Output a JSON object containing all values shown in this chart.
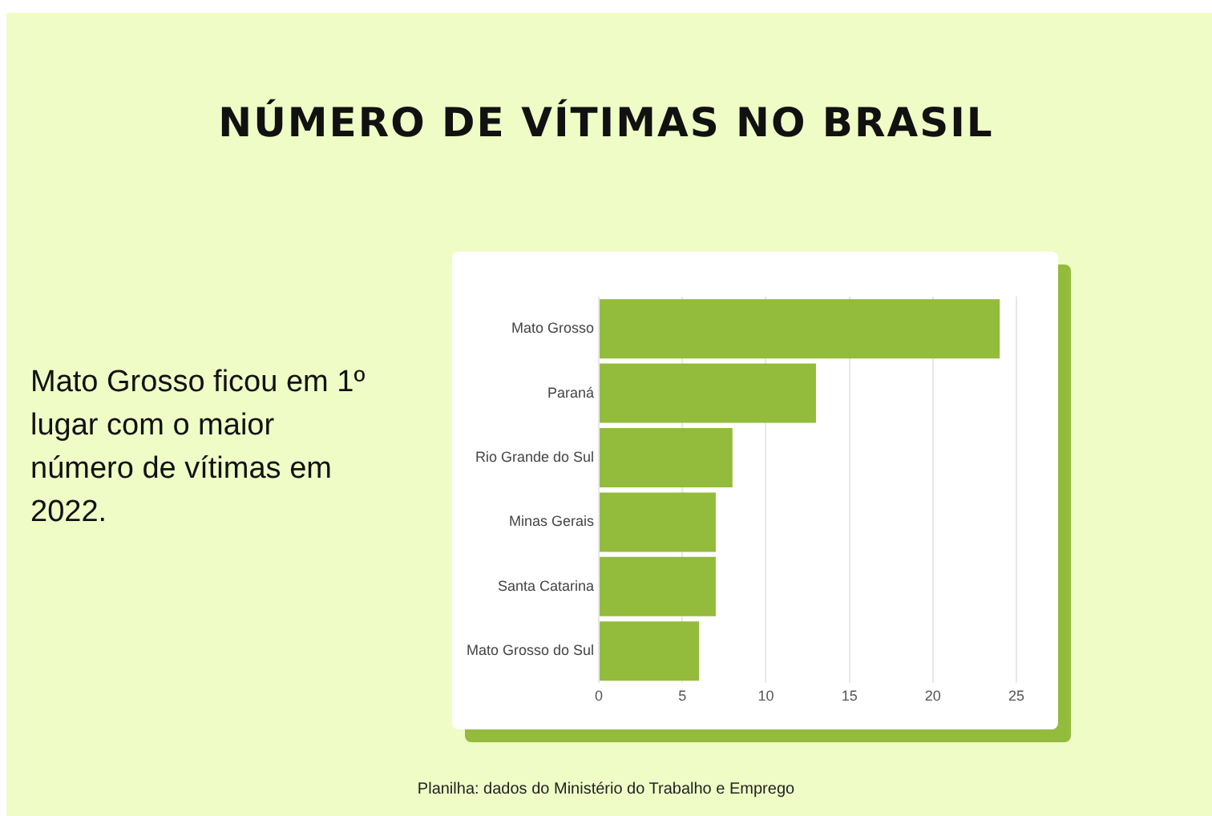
{
  "chart_data": {
    "type": "bar",
    "orientation": "horizontal",
    "title": "NÚMERO DE VÍTIMAS NO BRASIL",
    "categories": [
      "Mato Grosso",
      "Paraná",
      "Rio Grande do Sul",
      "Minas Gerais",
      "Santa Catarina",
      "Mato Grosso do Sul"
    ],
    "values": [
      24,
      13,
      8,
      7,
      7,
      6
    ],
    "color": "#93bb3c",
    "xlim": [
      0,
      25
    ],
    "xticks": [
      0,
      5,
      10,
      15,
      20,
      25
    ],
    "grid": "x",
    "annotations": [
      "Mato Grosso ficou em 1º lugar com o maior número de vítimas em 2022.",
      "Planilha: dados do Ministério do Trabalho e Emprego"
    ]
  }
}
